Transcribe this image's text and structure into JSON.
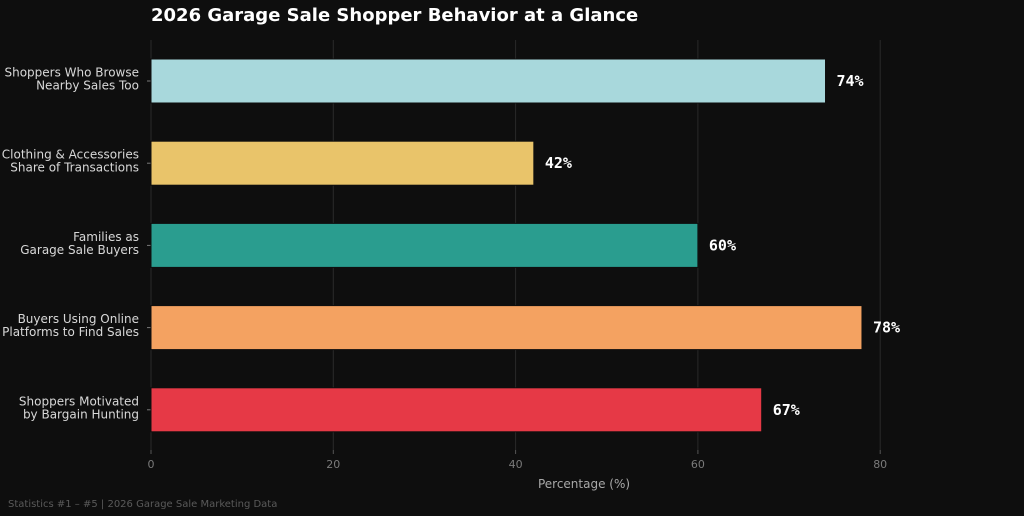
{
  "chart_data": {
    "type": "bar",
    "orientation": "horizontal",
    "title": "2026 Garage Sale Shopper Behavior at a Glance",
    "xlabel": "Percentage (%)",
    "ylabel": "",
    "xlim": [
      0,
      85
    ],
    "xticks": [
      "0",
      "20",
      "40",
      "60",
      "80"
    ],
    "grid": true,
    "categories": [
      [
        "Shoppers Who Browse",
        "Nearby Sales Too"
      ],
      [
        "Clothing & Accessories",
        "Share of Transactions"
      ],
      [
        "Families as",
        "Garage Sale Buyers"
      ],
      [
        "Buyers Using Online",
        "Platforms to Find Sales"
      ],
      [
        "Shoppers Motivated",
        "by Bargain Hunting"
      ]
    ],
    "values": [
      74,
      42,
      60,
      78,
      67
    ],
    "value_labels": [
      "74%",
      "42%",
      "60%",
      "78%",
      "67%"
    ],
    "colors": [
      "#a8d8dc",
      "#e9c46a",
      "#2a9d8f",
      "#f4a261",
      "#e63946"
    ]
  },
  "footer": "Statistics #1 – #5  |  2026 Garage Sale Marketing Data",
  "colors": {
    "background": "#0e0e0e",
    "text": "#ffffff"
  }
}
